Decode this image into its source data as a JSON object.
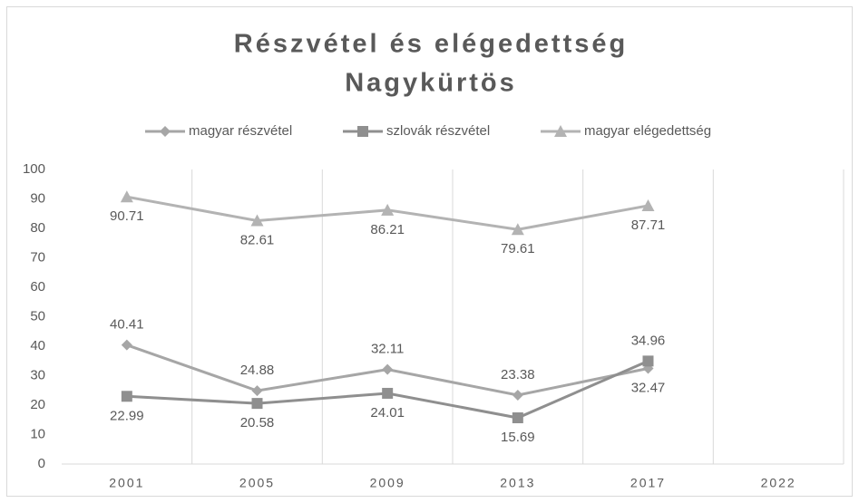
{
  "chart_data": {
    "type": "line",
    "title": [
      "Részvétel és elégedettség",
      "Nagykürtös"
    ],
    "categories": [
      "2001",
      "2005",
      "2009",
      "2013",
      "2017",
      "2022"
    ],
    "series": [
      {
        "name": "magyar részvétel",
        "color": "#a6a6a6",
        "marker": "diamond",
        "values": [
          40.41,
          24.88,
          32.11,
          23.38,
          32.47,
          null
        ]
      },
      {
        "name": "szlovák részvétel",
        "color": "#8f8f8f",
        "marker": "square",
        "values": [
          22.99,
          20.58,
          24.01,
          15.69,
          34.96,
          null
        ]
      },
      {
        "name": "magyar elégedettség",
        "color": "#b3b3b3",
        "marker": "triangle",
        "values": [
          90.71,
          82.61,
          86.21,
          79.61,
          87.71,
          null
        ]
      }
    ],
    "ylim": [
      0,
      100
    ],
    "yticks": [
      0,
      10,
      20,
      30,
      40,
      50,
      60,
      70,
      80,
      90,
      100
    ],
    "legend": "top",
    "grid": "vertical"
  }
}
